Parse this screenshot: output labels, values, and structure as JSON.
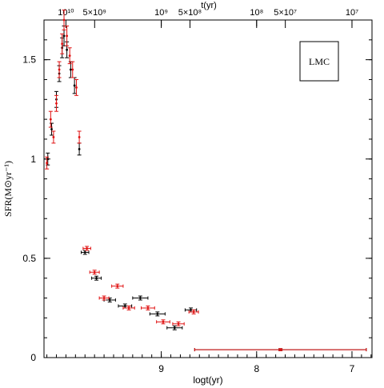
{
  "chart_data": {
    "type": "scatter",
    "xlabel": "logt(yr)",
    "ylabel": "SFR(M⊙yr⁻¹)",
    "top_axis_label": "t(yr)",
    "legend_box_text": "LMC",
    "x_axis_direction": "reversed",
    "xlim": [
      10.23,
      6.79
    ],
    "ylim": [
      0,
      1.7
    ],
    "bottom_ticks": [
      {
        "value": 9,
        "label": "9"
      },
      {
        "value": 8,
        "label": "8"
      },
      {
        "value": 7,
        "label": "7"
      }
    ],
    "left_ticks": [
      {
        "value": 0,
        "label": "0"
      },
      {
        "value": 0.5,
        "label": "0.5"
      },
      {
        "value": 1,
        "label": "1"
      },
      {
        "value": 1.5,
        "label": "1.5"
      }
    ],
    "top_ticks": [
      {
        "logt": 10.0,
        "label": "10¹⁰"
      },
      {
        "logt": 9.699,
        "label": "5×10⁹"
      },
      {
        "logt": 9.0,
        "label": "10⁹"
      },
      {
        "logt": 8.699,
        "label": "5×10⁸"
      },
      {
        "logt": 8.0,
        "label": "10⁸"
      },
      {
        "logt": 7.699,
        "label": "5×10⁷"
      },
      {
        "logt": 7.0,
        "label": "10⁷"
      }
    ],
    "colors": {
      "series_black": "#000000",
      "series_red": "#e01010"
    },
    "series": [
      {
        "color": "black",
        "points": [
          {
            "x": 10.19,
            "y": 1.0,
            "xerr": 0.0,
            "yerr": 0.03
          },
          {
            "x": 10.15,
            "y": 1.15,
            "xerr": 0.0,
            "yerr": 0.03
          },
          {
            "x": 10.1,
            "y": 1.3,
            "xerr": 0.0,
            "yerr": 0.04
          },
          {
            "x": 10.07,
            "y": 1.43,
            "xerr": 0.0,
            "yerr": 0.04
          },
          {
            "x": 10.04,
            "y": 1.56,
            "xerr": 0.0,
            "yerr": 0.05
          },
          {
            "x": 10.02,
            "y": 1.62,
            "xerr": 0.0,
            "yerr": 0.05
          },
          {
            "x": 9.99,
            "y": 1.55,
            "xerr": 0.0,
            "yerr": 0.04
          },
          {
            "x": 9.95,
            "y": 1.45,
            "xerr": 0.0,
            "yerr": 0.04
          },
          {
            "x": 9.91,
            "y": 1.37,
            "xerr": 0.0,
            "yerr": 0.04
          },
          {
            "x": 9.86,
            "y": 1.05,
            "xerr": 0.0,
            "yerr": 0.03
          },
          {
            "x": 9.8,
            "y": 0.53,
            "xerr": 0.04,
            "yerr": 0.01
          },
          {
            "x": 9.68,
            "y": 0.4,
            "xerr": 0.05,
            "yerr": 0.01
          },
          {
            "x": 9.54,
            "y": 0.29,
            "xerr": 0.06,
            "yerr": 0.01
          },
          {
            "x": 9.38,
            "y": 0.26,
            "xerr": 0.07,
            "yerr": 0.01
          },
          {
            "x": 9.22,
            "y": 0.3,
            "xerr": 0.08,
            "yerr": 0.01
          },
          {
            "x": 9.04,
            "y": 0.22,
            "xerr": 0.08,
            "yerr": 0.01
          },
          {
            "x": 8.86,
            "y": 0.15,
            "xerr": 0.08,
            "yerr": 0.01
          },
          {
            "x": 8.69,
            "y": 0.24,
            "xerr": 0.06,
            "yerr": 0.01
          },
          {
            "x": 7.75,
            "y": 0.04,
            "xerr": 0.9,
            "yerr": 0.005
          }
        ]
      },
      {
        "color": "red",
        "points": [
          {
            "x": 10.2,
            "y": 0.98,
            "xerr": 0.0,
            "yerr": 0.03
          },
          {
            "x": 10.16,
            "y": 1.2,
            "xerr": 0.0,
            "yerr": 0.04
          },
          {
            "x": 10.13,
            "y": 1.11,
            "xerr": 0.0,
            "yerr": 0.03
          },
          {
            "x": 10.1,
            "y": 1.28,
            "xerr": 0.0,
            "yerr": 0.04
          },
          {
            "x": 10.07,
            "y": 1.45,
            "xerr": 0.0,
            "yerr": 0.04
          },
          {
            "x": 10.04,
            "y": 1.58,
            "xerr": 0.0,
            "yerr": 0.05
          },
          {
            "x": 10.02,
            "y": 1.7,
            "xerr": 0.0,
            "yerr": 0.05
          },
          {
            "x": 9.99,
            "y": 1.62,
            "xerr": 0.0,
            "yerr": 0.05
          },
          {
            "x": 9.96,
            "y": 1.52,
            "xerr": 0.0,
            "yerr": 0.04
          },
          {
            "x": 9.93,
            "y": 1.45,
            "xerr": 0.0,
            "yerr": 0.04
          },
          {
            "x": 9.89,
            "y": 1.36,
            "xerr": 0.0,
            "yerr": 0.04
          },
          {
            "x": 9.86,
            "y": 1.11,
            "xerr": 0.0,
            "yerr": 0.03
          },
          {
            "x": 9.78,
            "y": 0.55,
            "xerr": 0.04,
            "yerr": 0.01
          },
          {
            "x": 9.7,
            "y": 0.43,
            "xerr": 0.05,
            "yerr": 0.01
          },
          {
            "x": 9.6,
            "y": 0.3,
            "xerr": 0.05,
            "yerr": 0.01
          },
          {
            "x": 9.46,
            "y": 0.36,
            "xerr": 0.06,
            "yerr": 0.01
          },
          {
            "x": 9.34,
            "y": 0.25,
            "xerr": 0.06,
            "yerr": 0.01
          },
          {
            "x": 9.14,
            "y": 0.25,
            "xerr": 0.07,
            "yerr": 0.01
          },
          {
            "x": 8.98,
            "y": 0.18,
            "xerr": 0.07,
            "yerr": 0.01
          },
          {
            "x": 8.82,
            "y": 0.17,
            "xerr": 0.06,
            "yerr": 0.01
          },
          {
            "x": 8.66,
            "y": 0.23,
            "xerr": 0.05,
            "yerr": 0.01
          },
          {
            "x": 7.75,
            "y": 0.04,
            "xerr": 0.9,
            "yerr": 0.005
          }
        ]
      }
    ]
  }
}
